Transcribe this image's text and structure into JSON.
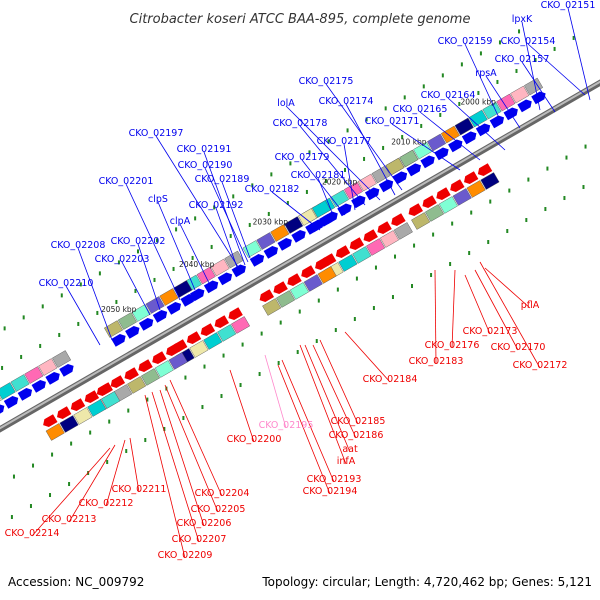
{
  "title": "Citrobacter koseri ATCC BAA-895, complete genome",
  "accession": "Accession: NC_009792",
  "topology": "Topology: circular; Length: 4,720,462 bp; Genes: 5,121",
  "colors": {
    "forward_label": "#0000ee",
    "reverse_label": "#ee0000",
    "pseudo_label": "#ff88cc",
    "backbone": "#888888",
    "forward_gene": "#0000ee",
    "reverse_gene": "#ee0000",
    "gc_tick": "#228822"
  },
  "ticks": [
    {
      "label": "2000 kbp"
    },
    {
      "label": "2010 kbp"
    },
    {
      "label": "2020 kbp"
    },
    {
      "label": "2030 kbp"
    },
    {
      "label": "2040 kbp"
    },
    {
      "label": "2050 kbp"
    }
  ],
  "forward_labels": [
    "CKO_02151",
    "lpxK",
    "CKO_02159",
    "CKO_02154",
    "CKO_02157",
    "rpsA",
    "CKO_02164",
    "CKO_02165",
    "CKO_02171",
    "CKO_02175",
    "CKO_02174",
    "lolA",
    "CKO_02178",
    "CKO_02177",
    "CKO_02179",
    "CKO_02181",
    "CKO_02182",
    "CKO_02197",
    "CKO_02191",
    "CKO_02190",
    "CKO_02189",
    "CKO_02192",
    "CKO_02201",
    "clpS",
    "clpA",
    "CKO_02202",
    "CKO_02208",
    "CKO_02203",
    "CKO_02210"
  ],
  "reverse_labels": [
    "pflA",
    "CKO_02173",
    "CKO_02176",
    "CKO_02170",
    "CKO_02172",
    "CKO_02183",
    "CKO_02184",
    "CKO_02185",
    "CKO_02186",
    "aat",
    "infA",
    "CKO_02193",
    "CKO_02194",
    "CKO_02200",
    "CKO_02204",
    "CKO_02205",
    "CKO_02206",
    "CKO_02207",
    "CKO_02209",
    "CKO_02211",
    "CKO_02212",
    "CKO_02213",
    "CKO_02214"
  ],
  "pseudo_labels": [
    "CKO_02195"
  ]
}
